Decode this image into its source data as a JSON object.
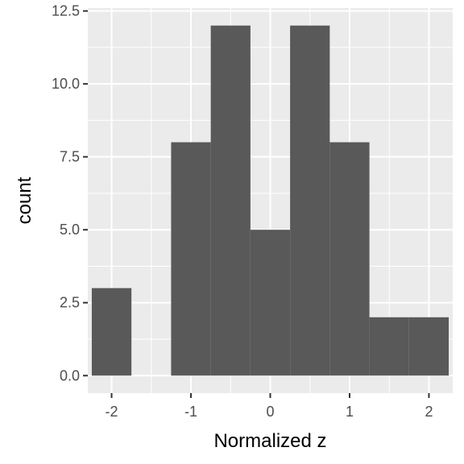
{
  "chart_data": {
    "type": "bar",
    "subtype": "histogram",
    "title": "",
    "xlabel": "Normalized z",
    "ylabel": "count",
    "xlim": [
      -2.3,
      2.3
    ],
    "ylim": [
      -0.6,
      12.6
    ],
    "bin_width": 0.5,
    "bins": [
      {
        "x0": -2.25,
        "x1": -1.75,
        "count": 3
      },
      {
        "x0": -1.75,
        "x1": -1.25,
        "count": 0
      },
      {
        "x0": -1.25,
        "x1": -0.75,
        "count": 8
      },
      {
        "x0": -0.75,
        "x1": -0.25,
        "count": 12
      },
      {
        "x0": -0.25,
        "x1": 0.25,
        "count": 5
      },
      {
        "x0": 0.25,
        "x1": 0.75,
        "count": 12
      },
      {
        "x0": 0.75,
        "x1": 1.25,
        "count": 8
      },
      {
        "x0": 1.25,
        "x1": 1.75,
        "count": 2
      },
      {
        "x0": 1.75,
        "x1": 2.25,
        "count": 2
      }
    ],
    "x_ticks": [
      {
        "value": -2,
        "label": "-2"
      },
      {
        "value": -1,
        "label": "-1"
      },
      {
        "value": 0,
        "label": "0"
      },
      {
        "value": 1,
        "label": "1"
      },
      {
        "value": 2,
        "label": "2"
      }
    ],
    "y_ticks": [
      {
        "value": 0,
        "label": "0.0"
      },
      {
        "value": 2.5,
        "label": "2.5"
      },
      {
        "value": 5,
        "label": "5.0"
      },
      {
        "value": 7.5,
        "label": "7.5"
      },
      {
        "value": 10,
        "label": "10.0"
      },
      {
        "value": 12.5,
        "label": "12.5"
      }
    ],
    "x_minor_ticks": [
      -1.5,
      -0.5,
      0.5,
      1.5
    ],
    "y_minor_ticks": [
      1.25,
      3.75,
      6.25,
      8.75,
      11.25
    ],
    "grid": true,
    "legend": "none",
    "colors": {
      "panel": "#ebebeb",
      "grid": "#ffffff",
      "bar": "#595959",
      "tick": "#333333"
    }
  }
}
